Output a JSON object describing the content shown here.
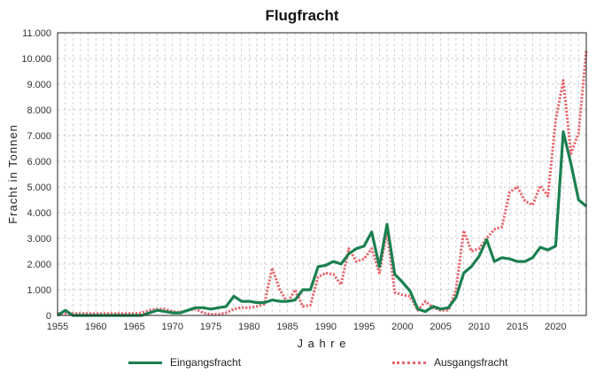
{
  "chart_data": {
    "type": "line",
    "title": "Flugfracht",
    "xlabel": "J a h r e",
    "ylabel": "Fracht  in  Tonnen",
    "xlim": [
      1955,
      2024
    ],
    "ylim": [
      0,
      11000
    ],
    "x_ticks": [
      1955,
      1960,
      1965,
      1970,
      1975,
      1980,
      1985,
      1990,
      1995,
      2000,
      2005,
      2010,
      2015,
      2020
    ],
    "y_ticks": [
      0,
      1000,
      2000,
      3000,
      4000,
      5000,
      6000,
      7000,
      8000,
      9000,
      10000,
      11000
    ],
    "y_tick_labels": [
      "0",
      "1.000",
      "2.000",
      "3.000",
      "4.000",
      "5.000",
      "6.000",
      "7.000",
      "8.000",
      "9.000",
      "10.000",
      "11.000"
    ],
    "grid": true,
    "legend_position": "bottom",
    "x": [
      1955,
      1956,
      1957,
      1958,
      1959,
      1960,
      1961,
      1962,
      1963,
      1964,
      1965,
      1966,
      1967,
      1968,
      1969,
      1970,
      1971,
      1972,
      1973,
      1974,
      1975,
      1976,
      1977,
      1978,
      1979,
      1980,
      1981,
      1982,
      1983,
      1984,
      1985,
      1986,
      1987,
      1988,
      1989,
      1990,
      1991,
      1992,
      1993,
      1994,
      1995,
      1996,
      1997,
      1998,
      1999,
      2000,
      2001,
      2002,
      2003,
      2004,
      2005,
      2006,
      2007,
      2008,
      2009,
      2010,
      2011,
      2012,
      2013,
      2014,
      2015,
      2016,
      2017,
      2018,
      2019,
      2020,
      2021,
      2022,
      2023,
      2024
    ],
    "series": [
      {
        "name": "Eingangsfracht",
        "color": "#1b8050",
        "style": "solid",
        "values": [
          0,
          200,
          0,
          0,
          0,
          0,
          0,
          0,
          0,
          0,
          0,
          0,
          100,
          200,
          150,
          100,
          100,
          200,
          300,
          300,
          250,
          300,
          350,
          750,
          550,
          550,
          500,
          500,
          600,
          550,
          550,
          600,
          1000,
          1000,
          1900,
          1950,
          2100,
          2000,
          2400,
          2600,
          2700,
          3250,
          1900,
          3550,
          1600,
          1300,
          950,
          250,
          150,
          350,
          250,
          300,
          700,
          1650,
          1900,
          2300,
          2950,
          2100,
          2250,
          2200,
          2100,
          2100,
          2250,
          2650,
          2550,
          2700,
          7150,
          5900,
          4500,
          4250
        ]
      },
      {
        "name": "Ausgangsfracht",
        "color": "#e8636b",
        "style": "dotted",
        "values": [
          80,
          80,
          80,
          80,
          80,
          80,
          80,
          80,
          80,
          80,
          80,
          100,
          200,
          250,
          250,
          150,
          120,
          200,
          250,
          100,
          50,
          50,
          100,
          250,
          300,
          300,
          350,
          450,
          1850,
          1000,
          500,
          1000,
          350,
          400,
          1500,
          1650,
          1600,
          1200,
          2600,
          2100,
          2200,
          2600,
          1650,
          3300,
          900,
          800,
          750,
          200,
          550,
          300,
          200,
          200,
          1000,
          3300,
          2500,
          2600,
          3000,
          3350,
          3450,
          4800,
          5000,
          4450,
          4300,
          5050,
          4650,
          7600,
          9150,
          6300,
          7100,
          10300
        ]
      }
    ]
  },
  "legend": {
    "items": [
      {
        "label": "Eingangsfracht",
        "color": "#1b8050"
      },
      {
        "label": "Ausgangsfracht",
        "color": "#e8636b"
      }
    ]
  }
}
